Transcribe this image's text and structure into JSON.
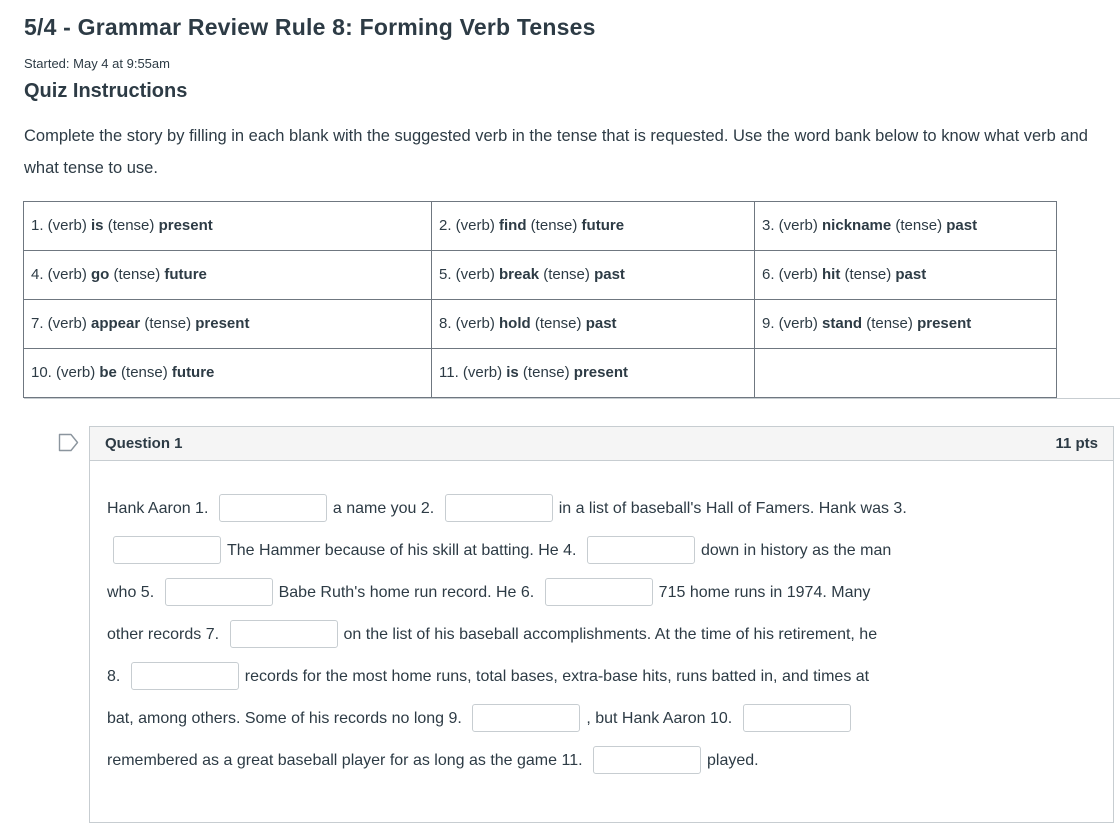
{
  "header": {
    "title": "5/4 - Grammar Review Rule 8: Forming Verb Tenses",
    "started": "Started: May 4 at 9:55am"
  },
  "instructions": {
    "heading": "Quiz Instructions",
    "body": "Complete the story by filling in each blank with the suggested verb in the tense that is requested. Use the word bank below to know what verb and what tense to use."
  },
  "word_bank": {
    "verb_label": "(verb)",
    "tense_label": "(tense)",
    "rows": [
      [
        {
          "num": "1.",
          "verb": "is",
          "tense": "present"
        },
        {
          "num": "2.",
          "verb": "find",
          "tense": "future"
        },
        {
          "num": "3.",
          "verb": "nickname",
          "tense": "past"
        }
      ],
      [
        {
          "num": "4.",
          "verb": "go",
          "tense": "future"
        },
        {
          "num": "5.",
          "verb": "break",
          "tense": "past"
        },
        {
          "num": "6.",
          "verb": "hit",
          "tense": "past"
        }
      ],
      [
        {
          "num": "7.",
          "verb": "appear",
          "tense": "present"
        },
        {
          "num": "8.",
          "verb": "hold",
          "tense": "past"
        },
        {
          "num": "9.",
          "verb": "stand",
          "tense": "present"
        }
      ],
      [
        {
          "num": "10.",
          "verb": "be",
          "tense": "future"
        },
        {
          "num": "11.",
          "verb": "is",
          "tense": "present"
        },
        null
      ]
    ]
  },
  "question": {
    "title": "Question 1",
    "points": "11 pts",
    "story": [
      {
        "type": "text",
        "value": "Hank Aaron 1."
      },
      {
        "type": "input",
        "name": "blank-answer-1",
        "value": ""
      },
      {
        "type": "text",
        "value": "a name you 2."
      },
      {
        "type": "input",
        "name": "blank-answer-2",
        "value": ""
      },
      {
        "type": "text",
        "value": "in a list of baseball's Hall of Famers. Hank was 3."
      },
      {
        "type": "break"
      },
      {
        "type": "input",
        "name": "blank-answer-3",
        "value": ""
      },
      {
        "type": "text",
        "value": "The Hammer because of his skill at batting. He 4."
      },
      {
        "type": "input",
        "name": "blank-answer-4",
        "value": ""
      },
      {
        "type": "text",
        "value": "down in history as the man"
      },
      {
        "type": "break"
      },
      {
        "type": "text",
        "value": "who 5."
      },
      {
        "type": "input",
        "name": "blank-answer-5",
        "value": ""
      },
      {
        "type": "text",
        "value": "Babe Ruth's home run record. He 6."
      },
      {
        "type": "input",
        "name": "blank-answer-6",
        "value": ""
      },
      {
        "type": "text",
        "value": "715 home runs in 1974. Many"
      },
      {
        "type": "break"
      },
      {
        "type": "text",
        "value": "other records 7."
      },
      {
        "type": "input",
        "name": "blank-answer-7",
        "value": ""
      },
      {
        "type": "text",
        "value": "on the list of his baseball accomplishments. At the time of his retirement, he"
      },
      {
        "type": "break"
      },
      {
        "type": "text",
        "value": "8."
      },
      {
        "type": "input",
        "name": "blank-answer-8",
        "value": ""
      },
      {
        "type": "text",
        "value": "records for the most home runs, total bases, extra-base hits, runs batted in, and times at"
      },
      {
        "type": "break"
      },
      {
        "type": "text",
        "value": "bat, among others. Some of his records no long 9."
      },
      {
        "type": "input",
        "name": "blank-answer-9",
        "value": ""
      },
      {
        "type": "text",
        "value": ", but Hank Aaron 10."
      },
      {
        "type": "input",
        "name": "blank-answer-10",
        "value": ""
      },
      {
        "type": "break"
      },
      {
        "type": "text",
        "value": "remembered as a great baseball player for as long as the game 11."
      },
      {
        "type": "input",
        "name": "blank-answer-11",
        "value": ""
      },
      {
        "type": "text",
        "value": "played."
      }
    ]
  },
  "colors": {
    "text": "#2d3b45",
    "light_border": "#c7cdd1",
    "table_border": "#6f7780",
    "question_header_bg": "#f5f5f5"
  },
  "icons": {
    "flag_icon": "question-bookmark-flag"
  }
}
